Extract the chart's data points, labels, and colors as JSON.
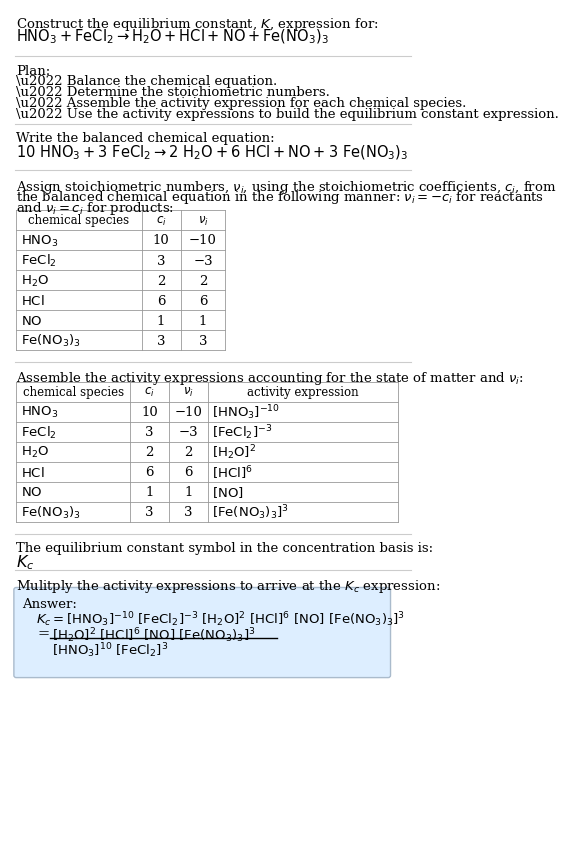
{
  "bg_color": "#ffffff",
  "separator_color": "#cccccc",
  "table_line_color": "#999999",
  "answer_box_bg": "#ddeeff",
  "answer_box_border": "#aabbcc",
  "font_size": 9.5,
  "eq_font_size": 10.5,
  "section1_title": "Construct the equilibrium constant, $K$, expression for:",
  "section1_eq": "$\\mathrm{HNO_3 + FeCl_2 \\rightarrow H_2O + HCl + NO + Fe(NO_3)_3}$",
  "section2_header": "Plan:",
  "section2_bullets": [
    "\\u2022 Balance the chemical equation.",
    "\\u2022 Determine the stoichiometric numbers.",
    "\\u2022 Assemble the activity expression for each chemical species.",
    "\\u2022 Use the activity expressions to build the equilibrium constant expression."
  ],
  "section3_header": "Write the balanced chemical equation:",
  "section3_eq": "$\\mathrm{10\\ HNO_3 + 3\\ FeCl_2 \\rightarrow 2\\ H_2O + 6\\ HCl + NO + 3\\ Fe(NO_3)_3}$",
  "section4_header_parts": [
    "Assign stoichiometric numbers, $\\nu_i$, using the stoichiometric coefficients, $c_i$, from",
    "the balanced chemical equation in the following manner: $\\nu_i = -c_i$ for reactants",
    "and $\\nu_i = c_i$ for products:"
  ],
  "table1_species": [
    "$\\mathrm{HNO_3}$",
    "$\\mathrm{FeCl_2}$",
    "$\\mathrm{H_2O}$",
    "$\\mathrm{HCl}$",
    "$\\mathrm{NO}$",
    "$\\mathrm{Fe(NO_3)_3}$"
  ],
  "table1_ci": [
    "10",
    "3",
    "2",
    "6",
    "1",
    "3"
  ],
  "table1_ni": [
    "−10",
    "−3",
    "2",
    "6",
    "1",
    "3"
  ],
  "section5_header": "Assemble the activity expressions accounting for the state of matter and $\\nu_i$:",
  "table2_species": [
    "$\\mathrm{HNO_3}$",
    "$\\mathrm{FeCl_2}$",
    "$\\mathrm{H_2O}$",
    "$\\mathrm{HCl}$",
    "$\\mathrm{NO}$",
    "$\\mathrm{Fe(NO_3)_3}$"
  ],
  "table2_ci": [
    "10",
    "3",
    "2",
    "6",
    "1",
    "3"
  ],
  "table2_ni": [
    "−10",
    "−3",
    "2",
    "6",
    "1",
    "3"
  ],
  "table2_act": [
    "$[\\mathrm{HNO_3}]^{-10}$",
    "$[\\mathrm{FeCl_2}]^{-3}$",
    "$[\\mathrm{H_2O}]^2$",
    "$[\\mathrm{HCl}]^6$",
    "$[\\mathrm{NO}]$",
    "$[\\mathrm{Fe(NO_3)_3}]^3$"
  ],
  "section6_header": "The equilibrium constant symbol in the concentration basis is:",
  "section6_kc": "$K_c$",
  "section7_header": "Mulitply the activity expressions to arrive at the $K_c$ expression:",
  "answer_label": "Answer:",
  "answer_line1a": "$K_c = [\\mathrm{HNO_3}]^{-10}\\ [\\mathrm{FeCl_2}]^{-3}\\ [\\mathrm{H_2O}]^2\\ [\\mathrm{HCl}]^6\\ [\\mathrm{NO}]\\ [\\mathrm{Fe(NO_3)_3}]^3$",
  "answer_eq_sign": "=",
  "answer_num": "$[\\mathrm{H_2O}]^2\\ [\\mathrm{HCl}]^6\\ [\\mathrm{NO}]\\ [\\mathrm{Fe(NO_3)_3}]^3$",
  "answer_den": "$[\\mathrm{HNO_3}]^{10}\\ [\\mathrm{FeCl_2}]^3$"
}
